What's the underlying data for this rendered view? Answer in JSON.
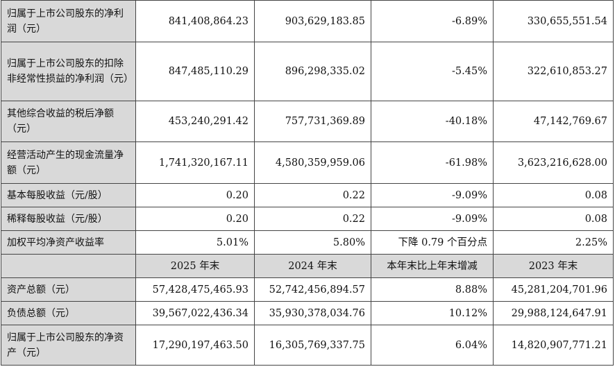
{
  "rows_top": [
    {
      "label": "归属于上市公司股东的净利润（元）",
      "values": [
        "841,408,864.23",
        "903,629,183.85",
        "-6.89%",
        "330,655,551.54"
      ]
    },
    {
      "label": "归属于上市公司股东的扣除非经常性损益的净利润（元）",
      "values": [
        "847,485,110.29",
        "896,298,335.02",
        "-5.45%",
        "322,610,853.27"
      ]
    },
    {
      "label": "其他综合收益的税后净额（元）",
      "values": [
        "453,240,291.42",
        "757,731,369.89",
        "-40.18%",
        "47,142,769.67"
      ]
    },
    {
      "label": "经营活动产生的现金流量净额（元）",
      "values": [
        "1,741,320,167.11",
        "4,580,359,959.06",
        "-61.98%",
        "3,623,216,628.00"
      ]
    },
    {
      "label": "基本每股收益（元/股）",
      "values": [
        "0.20",
        "0.22",
        "-9.09%",
        "0.08"
      ]
    },
    {
      "label": "稀释每股收益（元/股）",
      "values": [
        "0.20",
        "0.22",
        "-9.09%",
        "0.08"
      ]
    },
    {
      "label": "加权平均净资产收益率",
      "values": [
        "5.01%",
        "5.80%",
        "下降 0.79 个百分点",
        "2.25%"
      ]
    }
  ],
  "header": {
    "label": "",
    "cols": [
      "2025 年末",
      "2024 年末",
      "本年末比上年末增减",
      "2023 年末"
    ]
  },
  "rows_bottom": [
    {
      "label": "资产总额（元）",
      "values": [
        "57,428,475,465.93",
        "52,742,456,894.57",
        "8.88%",
        "45,281,204,701.96"
      ]
    },
    {
      "label": "负债总额（元）",
      "values": [
        "39,567,022,436.34",
        "35,930,378,034.76",
        "10.12%",
        "29,988,124,647.91"
      ]
    },
    {
      "label": "归属于上市公司股东的净资产（元）",
      "values": [
        "17,290,197,463.50",
        "16,305,769,337.75",
        "6.04%",
        "14,820,907,771.21"
      ]
    }
  ],
  "colors": {
    "label_bg": "#d9d9d9",
    "border": "#444444",
    "text": "#111111"
  }
}
